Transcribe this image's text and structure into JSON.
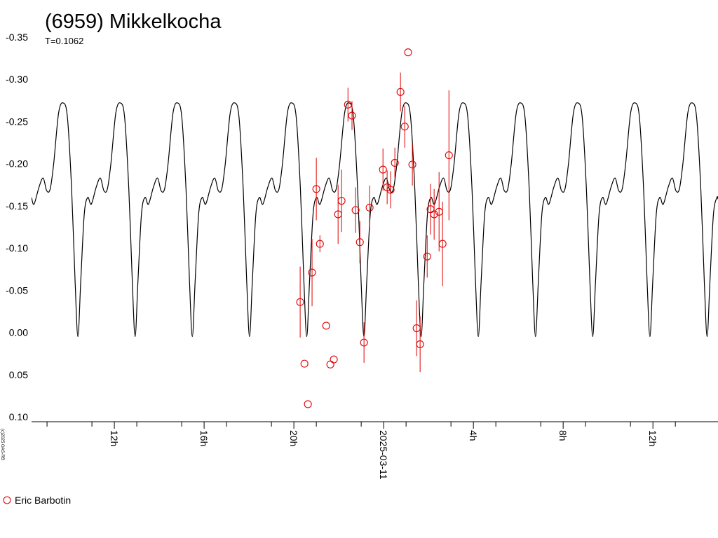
{
  "chart_data": {
    "type": "scatter",
    "title": "(6959) Mikkelkocha",
    "subtitle": "T=0.1062",
    "copyright": "(c)2025 OAS-RB",
    "inverted_y": true,
    "legend": "bottom-left",
    "grid": false,
    "xlim": [
      -15.69,
      14.9
    ],
    "ylim": [
      -0.35,
      0.1
    ],
    "yticks": [
      {
        "value": -0.35,
        "label": "-0.35"
      },
      {
        "value": -0.3,
        "label": "-0.30"
      },
      {
        "value": -0.25,
        "label": "-0.25"
      },
      {
        "value": -0.2,
        "label": "-0.20"
      },
      {
        "value": -0.15,
        "label": "-0.15"
      },
      {
        "value": -0.1,
        "label": "-0.10"
      },
      {
        "value": -0.05,
        "label": "-0.05"
      },
      {
        "value": 0.0,
        "label": "0.00"
      },
      {
        "value": 0.05,
        "label": "0.05"
      },
      {
        "value": 0.1,
        "label": "0.10"
      }
    ],
    "xticks": [
      {
        "value": -12,
        "label": "12h"
      },
      {
        "value": -8,
        "label": "16h"
      },
      {
        "value": -4,
        "label": "20h"
      },
      {
        "value": 0,
        "label": "2025-03-11"
      },
      {
        "value": 4,
        "label": "4h"
      },
      {
        "value": 8,
        "label": "8h"
      },
      {
        "value": 12,
        "label": "12h"
      }
    ],
    "minor_xticks": [
      -15,
      -13,
      -11,
      -9,
      -7,
      -5,
      -3,
      -1,
      1,
      3,
      5,
      7,
      9,
      11,
      13
    ],
    "series": [
      {
        "type": "line",
        "color": "#000000",
        "x": [
          -15.69,
          -15.579,
          -15.36,
          -15.173,
          -15.016,
          -14.86,
          -14.704,
          -14.485,
          -14.28,
          -14.092,
          -13.905,
          -13.749,
          -13.624,
          -13.499,
          -13.342,
          -13.186,
          -13.03,
          -12.811,
          -12.624,
          -12.467,
          -12.311,
          -12.155,
          -11.936,
          -11.731,
          -11.543,
          -11.356,
          -11.2,
          -11.075,
          -10.95,
          -10.793,
          -10.637,
          -10.481,
          -10.262,
          -10.075,
          -9.918,
          -9.762,
          -9.606,
          -9.387,
          -9.182,
          -8.994,
          -8.807,
          -8.651,
          -8.526,
          -8.401,
          -8.244,
          -8.088,
          -7.932,
          -7.713,
          -7.526,
          -7.369,
          -7.213,
          -7.057,
          -6.838,
          -6.633,
          -6.445,
          -6.258,
          -6.102,
          -5.977,
          -5.852,
          -5.695,
          -5.539,
          -5.383,
          -5.164,
          -4.977,
          -4.82,
          -4.664,
          -4.508,
          -4.289,
          -4.084,
          -3.896,
          -3.709,
          -3.553,
          -3.428,
          -3.303,
          -3.146,
          -2.99,
          -2.834,
          -2.615,
          -2.428,
          -2.271,
          -2.115,
          -1.959,
          -1.74,
          -1.535,
          -1.347,
          -1.16,
          -1.004,
          -0.879,
          -0.754,
          -0.597,
          -0.441,
          -0.285,
          -0.066,
          0.121,
          0.278,
          0.434,
          0.59,
          0.809,
          1.014,
          1.202,
          1.389,
          1.545,
          1.67,
          1.795,
          1.952,
          2.108,
          2.264,
          2.483,
          2.67,
          2.827,
          2.983,
          3.139,
          3.358,
          3.563,
          3.751,
          3.938,
          4.094,
          4.219,
          4.344,
          4.501,
          4.657,
          4.813,
          5.032,
          5.219,
          5.376,
          5.532,
          5.688,
          5.907,
          6.112,
          6.3,
          6.487,
          6.643,
          6.768,
          6.893,
          7.05,
          7.206,
          7.362,
          7.581,
          7.768,
          7.925,
          8.081,
          8.237,
          8.456,
          8.661,
          8.849,
          9.036,
          9.192,
          9.317,
          9.442,
          9.599,
          9.755,
          9.911,
          10.13,
          10.317,
          10.474,
          10.63,
          10.786,
          11.005,
          11.21,
          11.398,
          11.585,
          11.741,
          11.866,
          11.991,
          12.148,
          12.304,
          12.46,
          12.679,
          12.866,
          13.023,
          13.179,
          13.335,
          13.554,
          13.759,
          13.947,
          14.134,
          14.29,
          14.415,
          14.54,
          14.697,
          14.853,
          14.9
        ],
        "values": [
          -0.16,
          -0.152,
          -0.172,
          -0.183,
          -0.168,
          -0.17,
          -0.2,
          -0.26,
          -0.272,
          -0.255,
          -0.17,
          -0.06,
          0.005,
          -0.06,
          -0.14,
          -0.16,
          -0.152,
          -0.172,
          -0.183,
          -0.168,
          -0.17,
          -0.2,
          -0.26,
          -0.272,
          -0.255,
          -0.17,
          -0.06,
          0.005,
          -0.06,
          -0.14,
          -0.16,
          -0.152,
          -0.172,
          -0.183,
          -0.168,
          -0.17,
          -0.2,
          -0.26,
          -0.272,
          -0.255,
          -0.17,
          -0.06,
          0.005,
          -0.06,
          -0.14,
          -0.16,
          -0.152,
          -0.172,
          -0.183,
          -0.168,
          -0.17,
          -0.2,
          -0.26,
          -0.272,
          -0.255,
          -0.17,
          -0.06,
          0.005,
          -0.06,
          -0.14,
          -0.16,
          -0.152,
          -0.172,
          -0.183,
          -0.168,
          -0.17,
          -0.2,
          -0.26,
          -0.272,
          -0.255,
          -0.17,
          -0.06,
          0.005,
          -0.06,
          -0.14,
          -0.16,
          -0.152,
          -0.172,
          -0.183,
          -0.168,
          -0.17,
          -0.2,
          -0.26,
          -0.272,
          -0.255,
          -0.17,
          -0.06,
          0.005,
          -0.06,
          -0.14,
          -0.16,
          -0.152,
          -0.172,
          -0.183,
          -0.168,
          -0.17,
          -0.2,
          -0.26,
          -0.272,
          -0.255,
          -0.17,
          -0.06,
          0.005,
          -0.06,
          -0.14,
          -0.16,
          -0.152,
          -0.172,
          -0.183,
          -0.168,
          -0.17,
          -0.2,
          -0.26,
          -0.272,
          -0.255,
          -0.17,
          -0.06,
          0.005,
          -0.06,
          -0.14,
          -0.16,
          -0.152,
          -0.172,
          -0.183,
          -0.168,
          -0.17,
          -0.2,
          -0.26,
          -0.272,
          -0.255,
          -0.17,
          -0.06,
          0.005,
          -0.06,
          -0.14,
          -0.16,
          -0.152,
          -0.172,
          -0.183,
          -0.168,
          -0.17,
          -0.2,
          -0.26,
          -0.272,
          -0.255,
          -0.17,
          -0.06,
          0.005,
          -0.06,
          -0.14,
          -0.16,
          -0.152,
          -0.172,
          -0.183,
          -0.168,
          -0.17,
          -0.2,
          -0.26,
          -0.272,
          -0.255,
          -0.17,
          -0.06,
          0.005,
          -0.06,
          -0.14,
          -0.16,
          -0.152,
          -0.172,
          -0.183,
          -0.168,
          -0.17,
          -0.2,
          -0.26,
          -0.272,
          -0.255,
          -0.17,
          -0.06,
          0.005,
          -0.06,
          -0.14,
          -0.16,
          -0.158
        ]
      },
      {
        "type": "scatter",
        "name": "Eric Barbotin",
        "color": "#e00000",
        "x": [
          -3.72,
          -3.53,
          -3.375,
          -3.19,
          -3.0,
          -2.84,
          -2.56,
          -2.375,
          -2.22,
          -2.03,
          -1.875,
          -1.59,
          -1.41,
          -1.25,
          -1.06,
          -0.875,
          -0.625,
          -0.03,
          0.156,
          0.31,
          0.5,
          0.75,
          0.94,
          1.09,
          1.28,
          1.47,
          1.625,
          1.94,
          2.09,
          2.25,
          2.47,
          2.625,
          2.91
        ],
        "values": [
          -0.036,
          0.037,
          0.085,
          -0.071,
          -0.17,
          -0.105,
          -0.008,
          0.038,
          0.032,
          -0.14,
          -0.156,
          -0.27,
          -0.257,
          -0.145,
          -0.107,
          0.012,
          -0.148,
          -0.193,
          -0.172,
          -0.169,
          -0.201,
          -0.285,
          -0.244,
          -0.332,
          -0.199,
          -0.005,
          0.014,
          -0.09,
          -0.146,
          -0.14,
          -0.143,
          -0.105,
          -0.21
        ],
        "errors": [
          0.042,
          0,
          0,
          0.04,
          0.037,
          0.01,
          0,
          0,
          0,
          0.035,
          0.037,
          0.02,
          0.017,
          0.027,
          0.025,
          0.024,
          0.026,
          0.025,
          0.02,
          0.022,
          0.018,
          0.023,
          0.025,
          0,
          0.025,
          0.033,
          0.033,
          0.025,
          0.03,
          0.03,
          0.047,
          0.05,
          0.077
        ]
      }
    ]
  }
}
